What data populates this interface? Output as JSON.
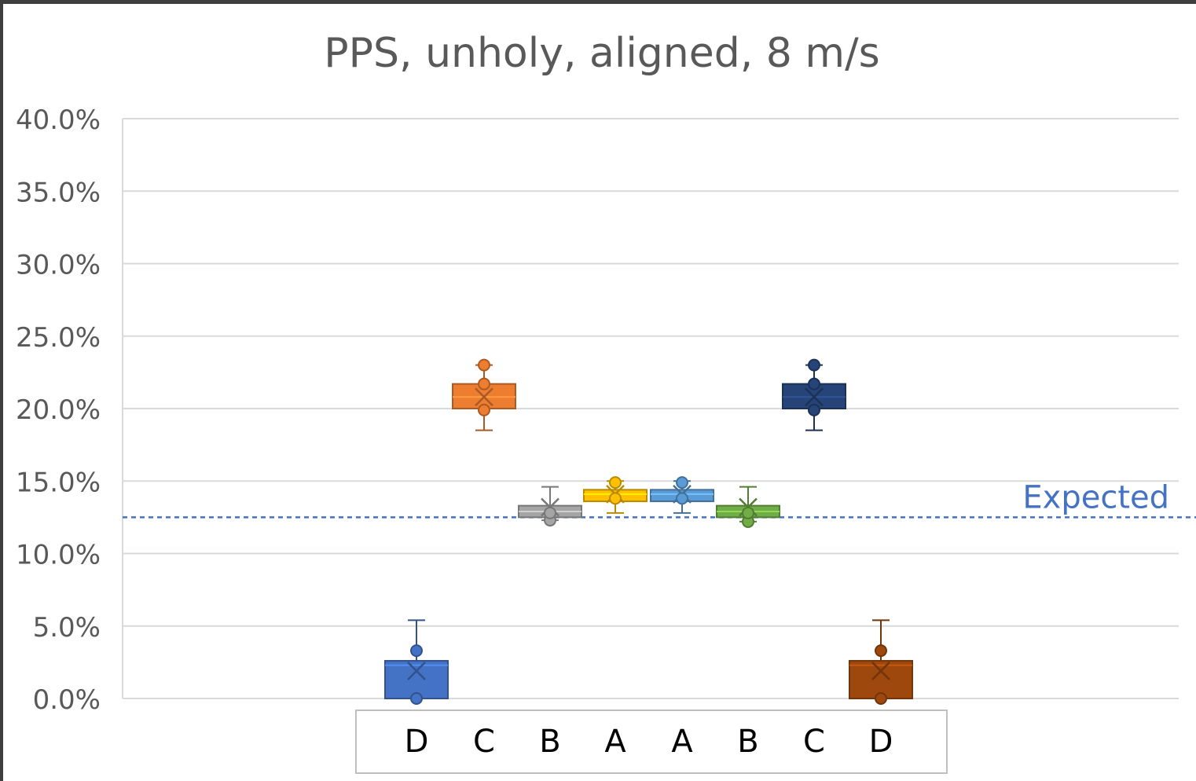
{
  "chart_data": {
    "type": "box",
    "title": "PPS, unholy, aligned, 8 m/s",
    "ylim": [
      0,
      40
    ],
    "yticks": [
      0,
      5,
      10,
      15,
      20,
      25,
      30,
      35,
      40
    ],
    "ytick_labels": [
      "0.0%",
      "5.0%",
      "10.0%",
      "15.0%",
      "20.0%",
      "25.0%",
      "30.0%",
      "35.0%",
      "40.0%"
    ],
    "grid": true,
    "categories": [
      "D",
      "C",
      "B",
      "A",
      "A",
      "B",
      "C",
      "D"
    ],
    "boxes": [
      {
        "category": "D",
        "color": "#4472c4",
        "min": 0.0,
        "q1": 0.0,
        "median": 2.3,
        "q3": 2.6,
        "max": 5.4,
        "mean": 1.9,
        "points": [
          3.3,
          0.0
        ]
      },
      {
        "category": "C",
        "color": "#ed7d31",
        "min": 18.5,
        "q1": 20.0,
        "median": 20.8,
        "q3": 21.7,
        "max": 23.0,
        "mean": 20.8,
        "points": [
          23.0,
          19.9,
          21.7
        ]
      },
      {
        "category": "B",
        "color": "#a5a5a5",
        "min": 12.3,
        "q1": 12.5,
        "median": 12.9,
        "q3": 13.3,
        "max": 14.6,
        "mean": 13.2,
        "points": [
          12.3,
          12.8
        ]
      },
      {
        "category": "A",
        "color": "#ffc000",
        "min": 12.8,
        "q1": 13.6,
        "median": 14.1,
        "q3": 14.4,
        "max": 15.0,
        "mean": 14.1,
        "points": [
          14.9,
          13.8
        ]
      },
      {
        "category": "A",
        "color": "#5b9bd5",
        "min": 12.8,
        "q1": 13.6,
        "median": 14.1,
        "q3": 14.4,
        "max": 15.0,
        "mean": 14.1,
        "points": [
          14.9,
          13.8
        ]
      },
      {
        "category": "B",
        "color": "#70ad47",
        "min": 12.2,
        "q1": 12.5,
        "median": 12.9,
        "q3": 13.3,
        "max": 14.6,
        "mean": 13.2,
        "points": [
          12.2,
          12.8
        ]
      },
      {
        "category": "C",
        "color": "#264478",
        "min": 18.5,
        "q1": 20.0,
        "median": 20.8,
        "q3": 21.7,
        "max": 23.0,
        "mean": 20.8,
        "points": [
          23.0,
          19.9,
          21.7
        ]
      },
      {
        "category": "D",
        "color": "#9e480e",
        "min": 0.0,
        "q1": 0.0,
        "median": 2.3,
        "q3": 2.6,
        "max": 5.4,
        "mean": 1.9,
        "points": [
          3.3,
          0.0
        ]
      }
    ],
    "reference_line": {
      "label": "Expected",
      "value": 12.5,
      "color": "#4472c4",
      "style": "dashed"
    }
  }
}
